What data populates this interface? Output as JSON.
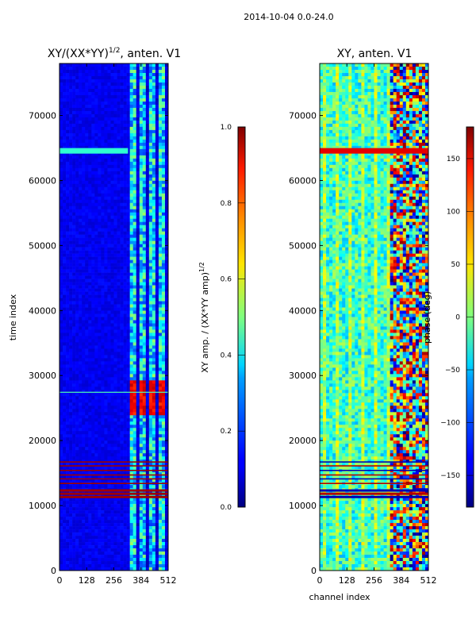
{
  "suptitle": "2014-10-04 0.0-24.0",
  "chart_data": [
    {
      "type": "heatmap",
      "title": "XY/(XX*YY)$^{1/2}$, anten. V1",
      "title_main": "XY/(XX*YY)",
      "title_exp": "1/2",
      "title_tail": ", anten. V1",
      "xlabel": "",
      "ylabel": "time index",
      "xlim": [
        0,
        512
      ],
      "ylim": [
        0,
        78000
      ],
      "xticks": [
        0,
        128,
        256,
        384,
        512
      ],
      "yticks": [
        0,
        10000,
        20000,
        30000,
        40000,
        50000,
        60000,
        70000
      ],
      "colormap": "jet",
      "colorbar": {
        "label": "XY amp. / (XX*YY amp)$^{1/2}$",
        "label_main": "XY amp. / (XX*YY amp)",
        "label_exp": "1/2",
        "range": [
          0.0,
          1.0
        ],
        "ticks": [
          "0.0",
          "0.2",
          "0.4",
          "0.6",
          "0.8",
          "1.0"
        ],
        "tick_values": [
          0.0,
          0.2,
          0.4,
          0.6,
          0.8,
          1.0
        ]
      }
    },
    {
      "type": "heatmap",
      "title": "XY, anten. V1",
      "xlabel": "channel index",
      "ylabel": "",
      "xlim": [
        0,
        512
      ],
      "ylim": [
        0,
        78000
      ],
      "xticks": [
        0,
        128,
        256,
        384,
        512
      ],
      "yticks": [
        0,
        10000,
        20000,
        30000,
        40000,
        50000,
        60000,
        70000
      ],
      "colormap": "jet",
      "colorbar": {
        "label": "phase (deg)",
        "range": [
          -180,
          180
        ],
        "ticks": [
          "150",
          "100",
          "50",
          "0",
          "−50",
          "−100",
          "−150"
        ],
        "tick_values": [
          150,
          100,
          50,
          0,
          -50,
          -100,
          -150
        ]
      }
    }
  ]
}
